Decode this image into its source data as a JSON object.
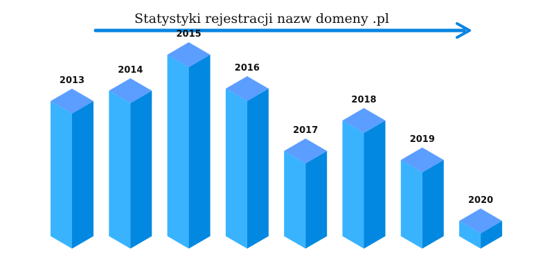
{
  "chart_data": {
    "type": "bar",
    "title": "Statystyki rejestracji nazw domeny .pl",
    "categories": [
      "2013",
      "2014",
      "2015",
      "2016",
      "2017",
      "2018",
      "2019",
      "2020"
    ],
    "values": [
      195,
      210,
      262,
      213,
      123,
      167,
      110,
      21
    ],
    "ylim": [
      0,
      265
    ],
    "xlabel": "",
    "ylabel": "",
    "grid": false,
    "style": "3d-isometric-bars",
    "colors": {
      "top": "#5C9EFF",
      "front": "#3AB3FF",
      "side": "#0288E0",
      "arrow": "#0A84E0",
      "text": "#111111"
    }
  }
}
